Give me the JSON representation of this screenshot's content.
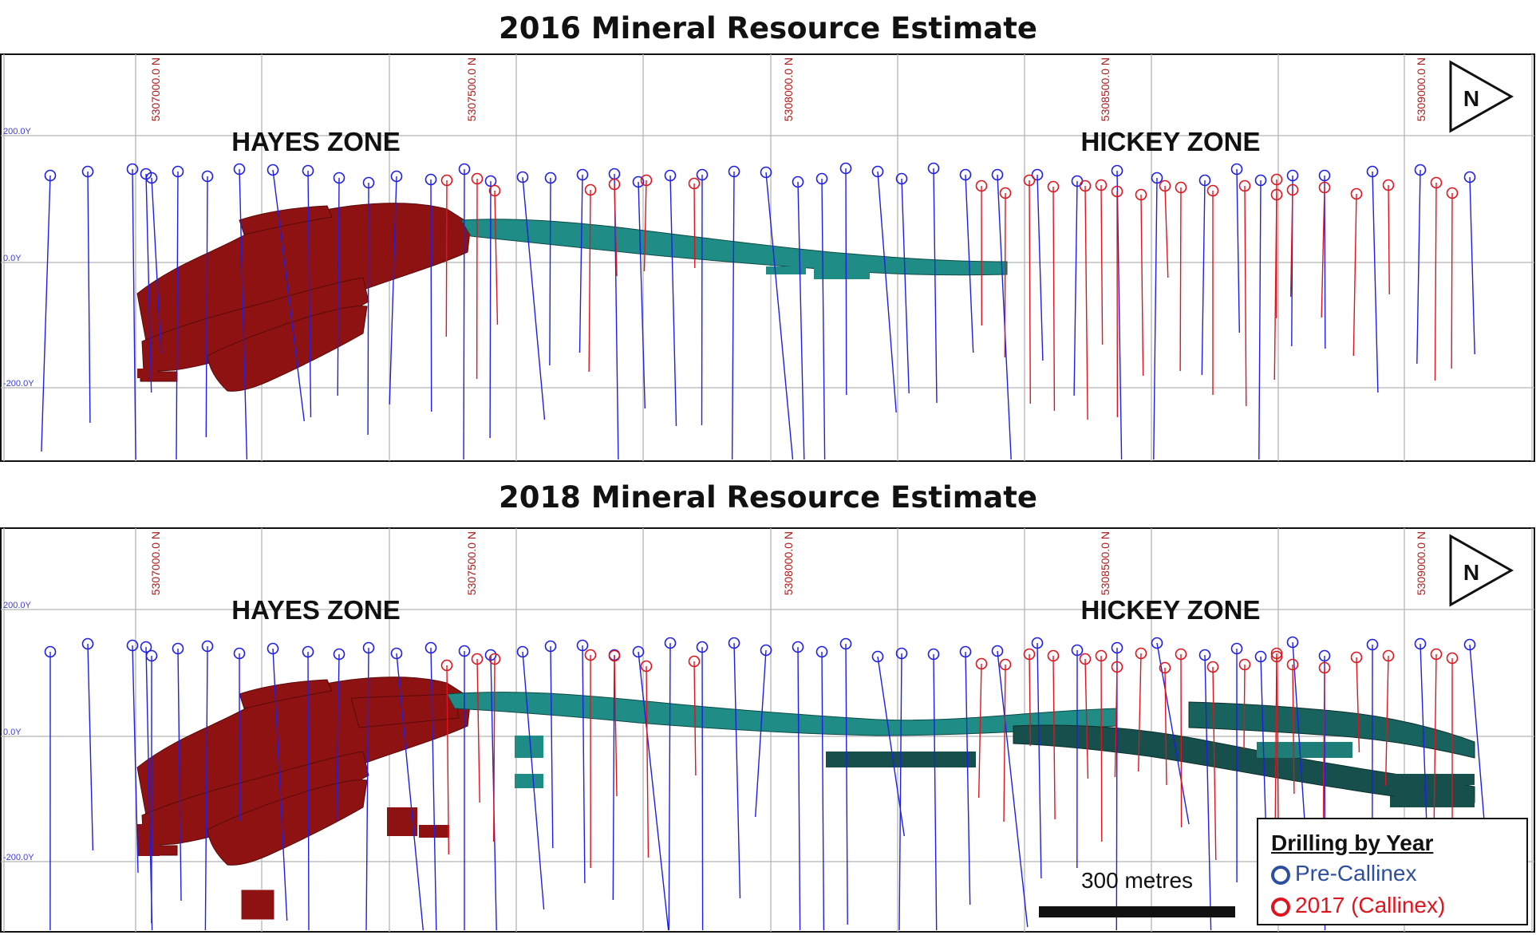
{
  "titles": {
    "top": "2016 Mineral Resource Estimate",
    "bottom": "2018 Mineral Resource Estimate"
  },
  "northings": [
    "5307000.0 N",
    "5307500.0 N",
    "5308000.0 N",
    "5308500.0 N",
    "5309000.0 N"
  ],
  "elevations": [
    "200.0Y",
    "0.0Y",
    "-200.0Y"
  ],
  "zones": {
    "hayes": "HAYES ZONE",
    "hickey": "HICKEY ZONE"
  },
  "north_arrow": "N",
  "scale_bar": {
    "label": "300 metres"
  },
  "legend": {
    "title": "Drilling by Year",
    "items": [
      {
        "label": "Pre-Callinex",
        "color": "#2d4fa0"
      },
      {
        "label": "2017 (Callinex)",
        "color": "#e0141e"
      }
    ]
  },
  "colors": {
    "pre_callinex_holes": "#1e1ee6",
    "callinex_holes": "#e0141e",
    "hayes_solids": "#8e1212",
    "hickey_solids": "#1f8c86",
    "grid": "#b5b5b5"
  }
}
